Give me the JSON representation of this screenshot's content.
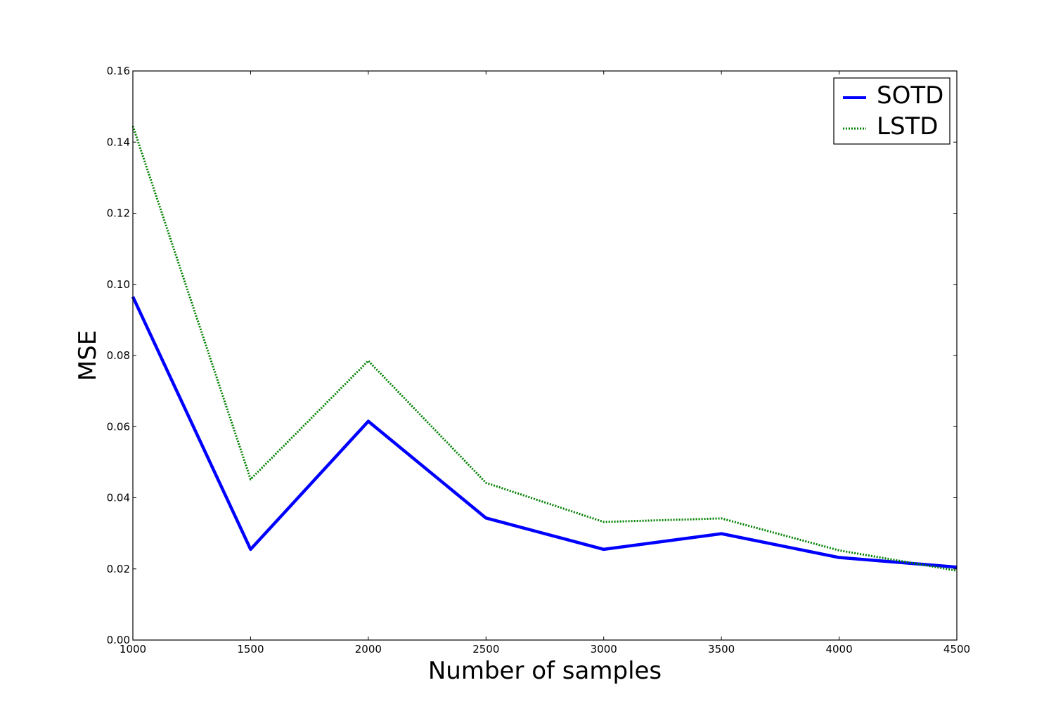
{
  "chart_data": {
    "type": "line",
    "title": "",
    "xlabel": "Number of samples",
    "ylabel": "MSE",
    "x": [
      1000,
      1500,
      2000,
      2500,
      3000,
      3500,
      4000,
      4500
    ],
    "xlim": [
      1000,
      4500
    ],
    "ylim": [
      0,
      0.16
    ],
    "xticks": [
      "1000",
      "1500",
      "2000",
      "2500",
      "3000",
      "3500",
      "4000",
      "4500"
    ],
    "yticks": [
      "0.00",
      "0.02",
      "0.04",
      "0.06",
      "0.08",
      "0.10",
      "0.12",
      "0.14",
      "0.16"
    ],
    "grid": false,
    "legend_position": "top-right",
    "series": [
      {
        "name": "SOTD",
        "values": [
          0.0965,
          0.0255,
          0.0615,
          0.0343,
          0.0255,
          0.0299,
          0.0232,
          0.0205
        ],
        "color": "#0000ff",
        "style": "solid"
      },
      {
        "name": "LSTD",
        "values": [
          0.1445,
          0.0452,
          0.0785,
          0.0442,
          0.0332,
          0.0342,
          0.0252,
          0.0195
        ],
        "color": "#008000",
        "style": "dotted"
      }
    ]
  }
}
